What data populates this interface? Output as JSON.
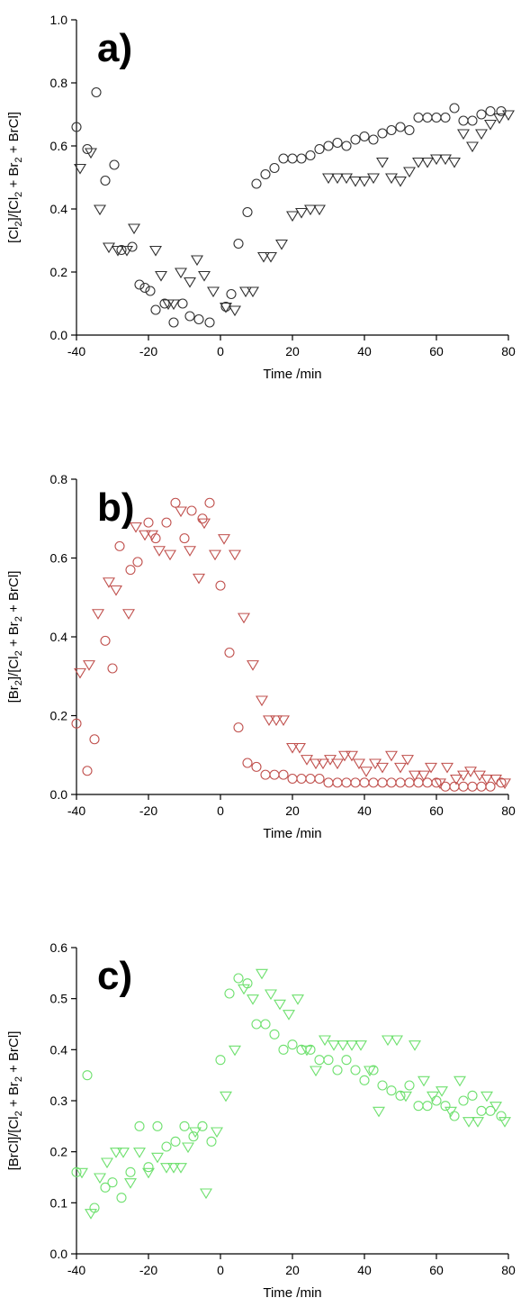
{
  "chart_data": [
    {
      "type": "scatter",
      "panel_label": "a)",
      "xlabel": "Time /min",
      "ylabel": [
        "[Cl",
        "2",
        "]/[Cl",
        "2",
        " + Br",
        "2",
        " + BrCl]"
      ],
      "xlim": [
        -40,
        80
      ],
      "ylim": [
        0,
        1.0
      ],
      "xticks": [
        -40,
        -20,
        0,
        20,
        40,
        60,
        80
      ],
      "yticks": [
        0.0,
        0.2,
        0.4,
        0.6,
        0.8,
        1.0
      ],
      "ytick_labels": [
        "0.0",
        "0.2",
        "0.4",
        "0.6",
        "0.8",
        "1.0"
      ],
      "color": "#303030",
      "series": [
        {
          "marker": "circle",
          "x": [
            -40,
            -37,
            -34.5,
            -32,
            -29.5,
            -27.5,
            -24.5,
            -22.5,
            -21,
            -19.5,
            -18,
            -15.5,
            -13,
            -10.5,
            -8.5,
            -6,
            -3,
            1.5,
            3,
            5,
            7.5,
            10,
            12.5,
            15,
            17.5,
            20,
            22.5,
            25,
            27.5,
            30,
            32.5,
            35,
            37.5,
            40,
            42.5,
            45,
            47.5,
            50,
            52.5,
            55,
            57.5,
            60,
            62.5,
            65,
            67.5,
            70,
            72.5,
            75,
            78
          ],
          "y": [
            0.66,
            0.59,
            0.77,
            0.49,
            0.54,
            0.27,
            0.28,
            0.16,
            0.15,
            0.14,
            0.08,
            0.1,
            0.04,
            0.1,
            0.06,
            0.05,
            0.04,
            0.09,
            0.13,
            0.29,
            0.39,
            0.48,
            0.51,
            0.53,
            0.56,
            0.56,
            0.56,
            0.57,
            0.59,
            0.6,
            0.61,
            0.6,
            0.62,
            0.63,
            0.62,
            0.64,
            0.65,
            0.66,
            0.65,
            0.69,
            0.69,
            0.69,
            0.69,
            0.72,
            0.68,
            0.68,
            0.7,
            0.71,
            0.71
          ]
        },
        {
          "marker": "triangle-down",
          "x": [
            -39,
            -36,
            -33.5,
            -31,
            -28.5,
            -26,
            -24,
            -18,
            -16.5,
            -14.5,
            -13,
            -11,
            -8.5,
            -6.5,
            -4.5,
            -2,
            1.5,
            4,
            7,
            9,
            12,
            14,
            17,
            20,
            22.5,
            25,
            27.5,
            30,
            32.5,
            35,
            37.5,
            40,
            42.5,
            45,
            47.5,
            50,
            52.5,
            55,
            57.5,
            60,
            62.5,
            65,
            67.5,
            70,
            72.5,
            75,
            77.5,
            80
          ],
          "y": [
            0.53,
            0.58,
            0.4,
            0.28,
            0.27,
            0.27,
            0.34,
            0.27,
            0.19,
            0.1,
            0.1,
            0.2,
            0.17,
            0.24,
            0.19,
            0.14,
            0.09,
            0.08,
            0.14,
            0.14,
            0.25,
            0.25,
            0.29,
            0.38,
            0.39,
            0.4,
            0.4,
            0.5,
            0.5,
            0.5,
            0.49,
            0.49,
            0.5,
            0.55,
            0.5,
            0.49,
            0.52,
            0.55,
            0.55,
            0.56,
            0.56,
            0.55,
            0.64,
            0.6,
            0.64,
            0.67,
            0.69,
            0.7
          ]
        }
      ]
    },
    {
      "type": "scatter",
      "panel_label": "b)",
      "xlabel": "Time /min",
      "ylabel": [
        "[Br",
        "2",
        "]/[Cl",
        "2",
        " + Br",
        "2",
        " + BrCl]"
      ],
      "xlim": [
        -40,
        80
      ],
      "ylim": [
        0,
        0.8
      ],
      "xticks": [
        -40,
        -20,
        0,
        20,
        40,
        60,
        80
      ],
      "yticks": [
        0.0,
        0.2,
        0.4,
        0.6,
        0.8
      ],
      "ytick_labels": [
        "0.0",
        "0.2",
        "0.4",
        "0.6",
        "0.8"
      ],
      "color": "#c0504d",
      "series": [
        {
          "marker": "circle",
          "x": [
            -40,
            -37,
            -35,
            -32,
            -30,
            -28,
            -25,
            -23,
            -20,
            -18,
            -15,
            -12.5,
            -10,
            -8,
            -5,
            -3,
            0,
            2.5,
            5,
            7.5,
            10,
            12.5,
            15,
            17.5,
            20,
            22.5,
            25,
            27.5,
            30,
            32.5,
            35,
            37.5,
            40,
            42.5,
            45,
            47.5,
            50,
            52.5,
            55,
            57.5,
            60,
            62.5,
            65,
            67.5,
            70,
            72.5,
            75,
            78
          ],
          "y": [
            0.18,
            0.06,
            0.14,
            0.39,
            0.32,
            0.63,
            0.57,
            0.59,
            0.69,
            0.65,
            0.69,
            0.74,
            0.65,
            0.72,
            0.7,
            0.74,
            0.53,
            0.36,
            0.17,
            0.08,
            0.07,
            0.05,
            0.05,
            0.05,
            0.04,
            0.04,
            0.04,
            0.04,
            0.03,
            0.03,
            0.03,
            0.03,
            0.03,
            0.03,
            0.03,
            0.03,
            0.03,
            0.03,
            0.03,
            0.03,
            0.03,
            0.02,
            0.02,
            0.02,
            0.02,
            0.02,
            0.02,
            0.03
          ]
        },
        {
          "marker": "triangle-down",
          "x": [
            -39,
            -36.5,
            -34,
            -31,
            -29,
            -25.5,
            -23.5,
            -21,
            -19,
            -17,
            -14,
            -11,
            -8.5,
            -6,
            -4.5,
            -1.5,
            1,
            4,
            6.5,
            9,
            11.5,
            13.5,
            15.5,
            17.5,
            20,
            22,
            24,
            26.5,
            28.5,
            30.5,
            32.5,
            34.5,
            36.5,
            38.5,
            40.5,
            43,
            45,
            47.5,
            50,
            52,
            54,
            56.5,
            58.5,
            61,
            63,
            65.5,
            67.5,
            69.5,
            72,
            74,
            76.5,
            79
          ],
          "y": [
            0.31,
            0.33,
            0.46,
            0.54,
            0.52,
            0.46,
            0.68,
            0.66,
            0.66,
            0.62,
            0.61,
            0.72,
            0.62,
            0.55,
            0.69,
            0.61,
            0.65,
            0.61,
            0.45,
            0.33,
            0.24,
            0.19,
            0.19,
            0.19,
            0.12,
            0.12,
            0.09,
            0.08,
            0.08,
            0.09,
            0.08,
            0.1,
            0.1,
            0.08,
            0.06,
            0.08,
            0.07,
            0.1,
            0.07,
            0.09,
            0.05,
            0.05,
            0.07,
            0.03,
            0.07,
            0.04,
            0.05,
            0.06,
            0.05,
            0.04,
            0.04,
            0.03
          ]
        }
      ]
    },
    {
      "type": "scatter",
      "panel_label": "c)",
      "xlabel": "Time /min",
      "ylabel": [
        "[BrCl]/[Cl",
        "2",
        " + Br",
        "2",
        " + BrCl]"
      ],
      "xlim": [
        -40,
        80
      ],
      "ylim": [
        0,
        0.6
      ],
      "xticks": [
        -40,
        -20,
        0,
        20,
        40,
        60,
        80
      ],
      "yticks": [
        0.0,
        0.1,
        0.2,
        0.3,
        0.4,
        0.5,
        0.6
      ],
      "ytick_labels": [
        "0.0",
        "0.1",
        "0.2",
        "0.3",
        "0.4",
        "0.5",
        "0.6"
      ],
      "color": "#6ee06e",
      "series": [
        {
          "marker": "circle",
          "x": [
            -40,
            -37,
            -35,
            -32,
            -30,
            -27.5,
            -25,
            -22.5,
            -20,
            -17.5,
            -15,
            -12.5,
            -10,
            -7.5,
            -5,
            -2.5,
            0,
            2.5,
            5,
            7.5,
            10,
            12.5,
            15,
            17.5,
            20,
            22.5,
            25,
            27.5,
            30,
            32.5,
            35,
            37.5,
            40,
            42.5,
            45,
            47.5,
            50,
            52.5,
            55,
            57.5,
            60,
            62.5,
            65,
            67.5,
            70,
            72.5,
            75,
            78
          ],
          "y": [
            0.16,
            0.35,
            0.09,
            0.13,
            0.14,
            0.11,
            0.16,
            0.25,
            0.17,
            0.25,
            0.21,
            0.22,
            0.25,
            0.23,
            0.25,
            0.22,
            0.38,
            0.51,
            0.54,
            0.53,
            0.45,
            0.45,
            0.43,
            0.4,
            0.41,
            0.4,
            0.4,
            0.38,
            0.38,
            0.36,
            0.38,
            0.36,
            0.34,
            0.36,
            0.33,
            0.32,
            0.31,
            0.33,
            0.29,
            0.29,
            0.3,
            0.29,
            0.27,
            0.3,
            0.31,
            0.28,
            0.28,
            0.27
          ]
        },
        {
          "marker": "triangle-down",
          "x": [
            -38.5,
            -36,
            -33.5,
            -31.5,
            -29,
            -27,
            -25,
            -22.5,
            -20,
            -17.5,
            -15,
            -13,
            -11,
            -9,
            -7,
            -4,
            -1,
            1.5,
            4,
            6.5,
            9,
            11.5,
            14,
            16.5,
            19,
            21.5,
            24,
            26.5,
            29,
            31.5,
            34,
            36.5,
            39,
            41.5,
            44,
            46.5,
            49,
            51.5,
            54,
            56.5,
            59,
            61.5,
            64,
            66.5,
            69,
            71.5,
            74,
            76.5,
            79
          ],
          "y": [
            0.16,
            0.08,
            0.15,
            0.18,
            0.2,
            0.2,
            0.14,
            0.2,
            0.16,
            0.19,
            0.17,
            0.17,
            0.17,
            0.21,
            0.24,
            0.12,
            0.24,
            0.31,
            0.4,
            0.52,
            0.5,
            0.55,
            0.51,
            0.49,
            0.47,
            0.5,
            0.4,
            0.36,
            0.42,
            0.41,
            0.41,
            0.41,
            0.41,
            0.36,
            0.28,
            0.42,
            0.42,
            0.31,
            0.41,
            0.34,
            0.31,
            0.32,
            0.28,
            0.34,
            0.26,
            0.26,
            0.31,
            0.29,
            0.26
          ]
        }
      ]
    }
  ]
}
